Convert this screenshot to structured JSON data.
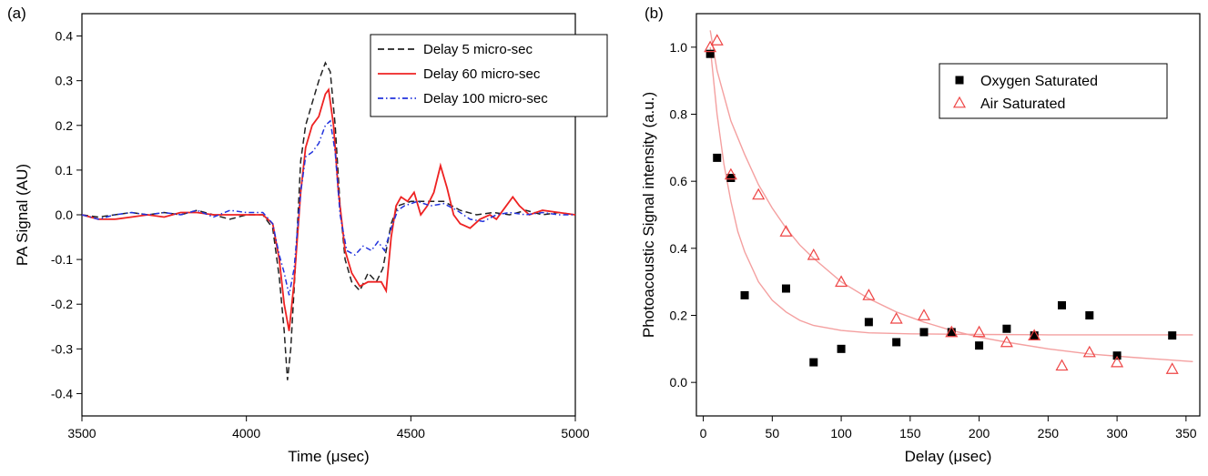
{
  "panels": {
    "left_tag": "(a)",
    "right_tag": "(b)"
  },
  "chart_data": [
    {
      "type": "line",
      "xlabel": "Time (μsec)",
      "ylabel": "PA Signal (AU)",
      "xlim": [
        3500,
        5000
      ],
      "ylim": [
        -0.45,
        0.45
      ],
      "xticks": [
        3500,
        4000,
        4500,
        5000
      ],
      "yticks": [
        -0.4,
        -0.3,
        -0.2,
        -0.1,
        0.0,
        0.1,
        0.2,
        0.3,
        0.4
      ],
      "ytick_labels": [
        "-0.4",
        "-0.3",
        "-0.2",
        "-0.1",
        "0.0",
        "0.1",
        "0.2",
        "0.3",
        "0.4"
      ],
      "grid": false,
      "legend_position": "top-right",
      "series": [
        {
          "name": "Delay 5 micro-sec",
          "color": "#222222",
          "dash": "dashed",
          "points": [
            [
              3500,
              0.0
            ],
            [
              3550,
              -0.005
            ],
            [
              3600,
              0.0
            ],
            [
              3650,
              0.005
            ],
            [
              3700,
              0.0
            ],
            [
              3750,
              0.005
            ],
            [
              3800,
              0.0
            ],
            [
              3850,
              0.01
            ],
            [
              3900,
              0.0
            ],
            [
              3950,
              -0.01
            ],
            [
              4000,
              0.0
            ],
            [
              4050,
              0.0
            ],
            [
              4080,
              -0.03
            ],
            [
              4100,
              -0.14
            ],
            [
              4115,
              -0.26
            ],
            [
              4125,
              -0.37
            ],
            [
              4135,
              -0.3
            ],
            [
              4150,
              -0.1
            ],
            [
              4165,
              0.12
            ],
            [
              4180,
              0.2
            ],
            [
              4200,
              0.25
            ],
            [
              4220,
              0.3
            ],
            [
              4240,
              0.34
            ],
            [
              4255,
              0.32
            ],
            [
              4270,
              0.2
            ],
            [
              4285,
              0.02
            ],
            [
              4300,
              -0.1
            ],
            [
              4320,
              -0.15
            ],
            [
              4345,
              -0.17
            ],
            [
              4370,
              -0.13
            ],
            [
              4395,
              -0.15
            ],
            [
              4415,
              -0.12
            ],
            [
              4440,
              -0.02
            ],
            [
              4460,
              0.02
            ],
            [
              4500,
              0.03
            ],
            [
              4550,
              0.03
            ],
            [
              4600,
              0.03
            ],
            [
              4650,
              0.01
            ],
            [
              4700,
              0.0
            ],
            [
              4750,
              0.005
            ],
            [
              4800,
              0.0
            ],
            [
              4850,
              0.01
            ],
            [
              4900,
              0.0
            ],
            [
              4950,
              0.005
            ],
            [
              5000,
              0.0
            ]
          ]
        },
        {
          "name": "Delay 60 micro-sec",
          "color": "#ee2222",
          "dash": "solid",
          "points": [
            [
              3500,
              0.0
            ],
            [
              3550,
              -0.01
            ],
            [
              3600,
              -0.01
            ],
            [
              3650,
              -0.005
            ],
            [
              3700,
              0.0
            ],
            [
              3750,
              -0.005
            ],
            [
              3800,
              0.005
            ],
            [
              3850,
              0.005
            ],
            [
              3900,
              0.0
            ],
            [
              3950,
              0.0
            ],
            [
              4000,
              0.0
            ],
            [
              4050,
              0.0
            ],
            [
              4080,
              -0.02
            ],
            [
              4100,
              -0.1
            ],
            [
              4115,
              -0.2
            ],
            [
              4130,
              -0.26
            ],
            [
              4145,
              -0.15
            ],
            [
              4165,
              0.05
            ],
            [
              4180,
              0.15
            ],
            [
              4200,
              0.2
            ],
            [
              4220,
              0.22
            ],
            [
              4240,
              0.27
            ],
            [
              4250,
              0.28
            ],
            [
              4265,
              0.2
            ],
            [
              4280,
              0.05
            ],
            [
              4300,
              -0.08
            ],
            [
              4320,
              -0.13
            ],
            [
              4345,
              -0.16
            ],
            [
              4370,
              -0.15
            ],
            [
              4390,
              -0.15
            ],
            [
              4410,
              -0.15
            ],
            [
              4425,
              -0.17
            ],
            [
              4440,
              -0.05
            ],
            [
              4455,
              0.02
            ],
            [
              4470,
              0.04
            ],
            [
              4490,
              0.03
            ],
            [
              4510,
              0.05
            ],
            [
              4530,
              0.0
            ],
            [
              4550,
              0.02
            ],
            [
              4570,
              0.05
            ],
            [
              4590,
              0.11
            ],
            [
              4610,
              0.06
            ],
            [
              4630,
              0.0
            ],
            [
              4650,
              -0.02
            ],
            [
              4680,
              -0.03
            ],
            [
              4710,
              -0.01
            ],
            [
              4740,
              0.0
            ],
            [
              4760,
              -0.01
            ],
            [
              4790,
              0.02
            ],
            [
              4810,
              0.04
            ],
            [
              4830,
              0.02
            ],
            [
              4860,
              0.0
            ],
            [
              4900,
              0.01
            ],
            [
              4950,
              0.005
            ],
            [
              5000,
              0.0
            ]
          ]
        },
        {
          "name": "Delay 100 micro-sec",
          "color": "#2233dd",
          "dash": "dashdot",
          "points": [
            [
              3500,
              0.0
            ],
            [
              3550,
              -0.01
            ],
            [
              3600,
              0.0
            ],
            [
              3650,
              0.005
            ],
            [
              3700,
              0.0
            ],
            [
              3750,
              0.005
            ],
            [
              3800,
              0.0
            ],
            [
              3850,
              0.01
            ],
            [
              3900,
              -0.005
            ],
            [
              3950,
              0.01
            ],
            [
              4000,
              0.005
            ],
            [
              4050,
              0.005
            ],
            [
              4080,
              -0.02
            ],
            [
              4100,
              -0.09
            ],
            [
              4115,
              -0.13
            ],
            [
              4130,
              -0.18
            ],
            [
              4145,
              -0.12
            ],
            [
              4165,
              0.05
            ],
            [
              4180,
              0.13
            ],
            [
              4200,
              0.14
            ],
            [
              4220,
              0.16
            ],
            [
              4240,
              0.2
            ],
            [
              4255,
              0.21
            ],
            [
              4270,
              0.14
            ],
            [
              4285,
              0.0
            ],
            [
              4305,
              -0.08
            ],
            [
              4330,
              -0.09
            ],
            [
              4355,
              -0.07
            ],
            [
              4380,
              -0.08
            ],
            [
              4400,
              -0.06
            ],
            [
              4420,
              -0.08
            ],
            [
              4440,
              -0.03
            ],
            [
              4460,
              0.01
            ],
            [
              4480,
              0.02
            ],
            [
              4520,
              0.03
            ],
            [
              4560,
              0.02
            ],
            [
              4600,
              0.025
            ],
            [
              4640,
              0.01
            ],
            [
              4680,
              -0.01
            ],
            [
              4720,
              -0.015
            ],
            [
              4760,
              0.0
            ],
            [
              4800,
              0.005
            ],
            [
              4850,
              0.0
            ],
            [
              4900,
              0.005
            ],
            [
              4950,
              0.0
            ],
            [
              5000,
              0.0
            ]
          ]
        }
      ]
    },
    {
      "type": "scatter",
      "xlabel": "Delay (μsec)",
      "ylabel": "Photoacoustic Signal intensity (a.u.)",
      "xlim": [
        -5,
        360
      ],
      "ylim": [
        -0.1,
        1.1
      ],
      "xticks": [
        0,
        50,
        100,
        150,
        200,
        250,
        300,
        350
      ],
      "yticks": [
        0.0,
        0.2,
        0.4,
        0.6,
        0.8,
        1.0
      ],
      "ytick_labels": [
        "0.0",
        "0.2",
        "0.4",
        "0.6",
        "0.8",
        "1.0"
      ],
      "grid": false,
      "legend_position": "top-right",
      "series": [
        {
          "name": "Oxygen Saturated",
          "marker": "square",
          "color": "#000000",
          "x": [
            5,
            10,
            20,
            30,
            60,
            80,
            100,
            120,
            140,
            160,
            180,
            200,
            220,
            240,
            260,
            280,
            300,
            340
          ],
          "y": [
            0.98,
            0.67,
            0.61,
            0.26,
            0.28,
            0.06,
            0.1,
            0.18,
            0.12,
            0.15,
            0.15,
            0.11,
            0.16,
            0.14,
            0.23,
            0.2,
            0.08,
            0.14
          ]
        },
        {
          "name": "Air Saturated",
          "marker": "triangle-open",
          "color": "#ee4444",
          "x": [
            5,
            10,
            20,
            40,
            60,
            80,
            100,
            120,
            140,
            160,
            180,
            200,
            220,
            240,
            260,
            280,
            300,
            340
          ],
          "y": [
            1.0,
            1.02,
            0.62,
            0.56,
            0.45,
            0.38,
            0.3,
            0.26,
            0.19,
            0.2,
            0.15,
            0.15,
            0.12,
            0.14,
            0.05,
            0.09,
            0.06,
            0.04
          ]
        }
      ],
      "fits": [
        {
          "color": "#f4a0a0",
          "points": [
            [
              5,
              1.0
            ],
            [
              10,
              0.8
            ],
            [
              15,
              0.65
            ],
            [
              20,
              0.54
            ],
            [
              25,
              0.45
            ],
            [
              30,
              0.39
            ],
            [
              40,
              0.3
            ],
            [
              50,
              0.245
            ],
            [
              60,
              0.21
            ],
            [
              70,
              0.185
            ],
            [
              80,
              0.17
            ],
            [
              100,
              0.155
            ],
            [
              120,
              0.148
            ],
            [
              150,
              0.145
            ],
            [
              200,
              0.143
            ],
            [
              250,
              0.142
            ],
            [
              300,
              0.142
            ],
            [
              355,
              0.142
            ]
          ]
        },
        {
          "color": "#f4a0a0",
          "points": [
            [
              5,
              1.05
            ],
            [
              10,
              0.93
            ],
            [
              20,
              0.78
            ],
            [
              30,
              0.68
            ],
            [
              40,
              0.59
            ],
            [
              50,
              0.52
            ],
            [
              60,
              0.46
            ],
            [
              70,
              0.41
            ],
            [
              80,
              0.37
            ],
            [
              100,
              0.3
            ],
            [
              120,
              0.25
            ],
            [
              140,
              0.21
            ],
            [
              160,
              0.18
            ],
            [
              180,
              0.155
            ],
            [
              200,
              0.135
            ],
            [
              220,
              0.12
            ],
            [
              250,
              0.1
            ],
            [
              280,
              0.085
            ],
            [
              310,
              0.075
            ],
            [
              355,
              0.062
            ]
          ]
        }
      ]
    }
  ]
}
